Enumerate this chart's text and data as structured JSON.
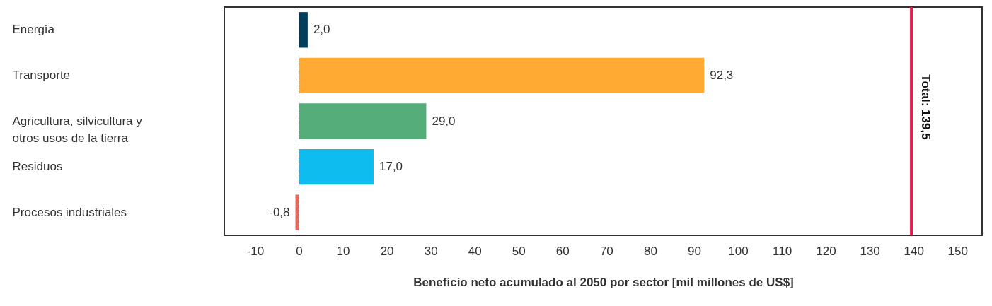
{
  "chart_data": {
    "type": "bar",
    "orientation": "horizontal",
    "xlabel": "Beneficio neto acumulado al 2050 por sector [mil millones de US$]",
    "categories": [
      "Energía",
      "Transporte",
      "Agricultura, silvicultura y\notros usos de la tierra",
      "Residuos",
      "Procesos industriales"
    ],
    "values": [
      2.0,
      92.3,
      29.0,
      17.0,
      -0.8
    ],
    "colors": [
      "#003f5c",
      "#ffab33",
      "#55ae7a",
      "#0fbcf0",
      "#e8675a"
    ],
    "value_labels": [
      "2,0",
      "92,3",
      "29,0",
      "17,0",
      "-0,8"
    ],
    "xlim": [
      -17,
      155.6
    ],
    "xticks": [
      -10,
      0,
      10,
      20,
      30,
      40,
      50,
      60,
      70,
      80,
      90,
      100,
      110,
      120,
      130,
      140,
      150
    ],
    "ref_lines": [
      {
        "axis": "x",
        "value": 0,
        "color": "#888888",
        "line_style": "dashed"
      },
      {
        "axis": "x",
        "value": 139.5,
        "label": "Total: 139,5",
        "color": "#e31c49",
        "line_style": "solid"
      }
    ],
    "grid": false
  }
}
